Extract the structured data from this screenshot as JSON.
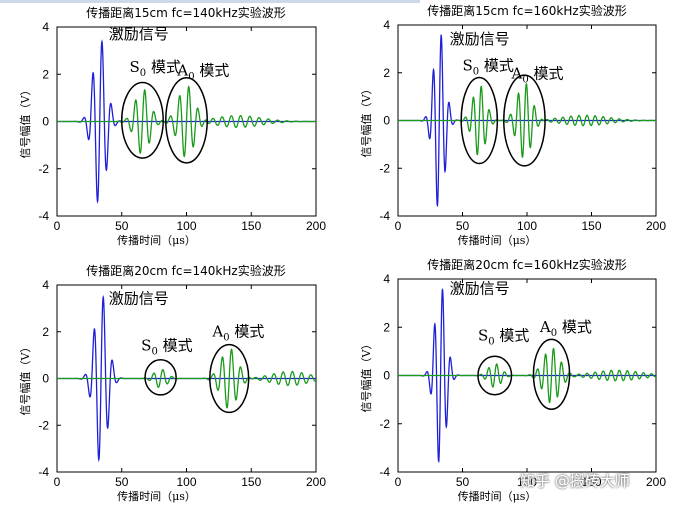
{
  "chart_data": [
    {
      "type": "line",
      "title": "传播距离15cm fc=140kHz实验波形",
      "xlabel": "传播时间（μs）",
      "ylabel": "信号幅值（V）",
      "xlim": [
        0,
        200
      ],
      "ylim": [
        -4,
        4
      ],
      "xticks": [
        "0",
        "50",
        "100",
        "150",
        "200"
      ],
      "yticks": [
        "-4",
        "-2",
        "0",
        "2",
        "4"
      ],
      "series": [
        {
          "color": "#1f1fd6",
          "packets": [
            {
              "center": 33,
              "width": 7,
              "freq": 0.14,
              "amp": 3.6
            }
          ]
        },
        {
          "color": "#1a9a1a",
          "packets": [
            {
              "center": 66,
              "width": 8,
              "freq": 0.14,
              "amp": 1.4
            },
            {
              "center": 100,
              "width": 9,
              "freq": 0.14,
              "amp": 1.55
            },
            {
              "center": 140,
              "width": 25,
              "freq": 0.14,
              "amp": 0.25
            }
          ]
        }
      ],
      "annotations": [
        {
          "text": "激励信号",
          "x": 40,
          "y": 3.5
        },
        {
          "text": "S",
          "sub": "0",
          "suffix": " 模式",
          "x": 56,
          "y": 2.1
        },
        {
          "text": "A",
          "sub": "0",
          "suffix": " 模式",
          "x": 93,
          "y": 1.95
        }
      ],
      "ellipses": [
        {
          "cx": 66,
          "cy": 0.05,
          "rx": 16,
          "ry": 1.6
        },
        {
          "cx": 100,
          "cy": 0.05,
          "rx": 16,
          "ry": 1.8
        }
      ]
    },
    {
      "type": "line",
      "title": "传播距离15cm fc=160kHz实验波形",
      "xlabel": "传播时间（μs）",
      "ylabel": "信号幅值（V）",
      "xlim": [
        0,
        200
      ],
      "ylim": [
        -4,
        4
      ],
      "xticks": [
        "0",
        "50",
        "100",
        "150",
        "200"
      ],
      "yticks": [
        "-4",
        "-2",
        "0",
        "2",
        "4"
      ],
      "series": [
        {
          "color": "#1f1fd6",
          "packets": [
            {
              "center": 32,
              "width": 6,
              "freq": 0.16,
              "amp": 3.8
            }
          ]
        },
        {
          "color": "#1a9a1a",
          "packets": [
            {
              "center": 63,
              "width": 7,
              "freq": 0.16,
              "amp": 1.5
            },
            {
              "center": 98,
              "width": 8,
              "freq": 0.16,
              "amp": 1.6
            },
            {
              "center": 145,
              "width": 25,
              "freq": 0.16,
              "amp": 0.22
            }
          ]
        }
      ],
      "annotations": [
        {
          "text": "激励信号",
          "x": 40,
          "y": 3.2
        },
        {
          "text": "S",
          "sub": "0",
          "suffix": " 模式",
          "x": 50,
          "y": 2.1
        },
        {
          "text": "A",
          "sub": "0",
          "suffix": " 模式",
          "x": 88,
          "y": 1.75
        }
      ],
      "ellipses": [
        {
          "cx": 63,
          "cy": 0.0,
          "rx": 14,
          "ry": 1.8
        },
        {
          "cx": 98,
          "cy": 0.0,
          "rx": 16,
          "ry": 1.9
        }
      ]
    },
    {
      "type": "line",
      "title": "传播距离20cm fc=140kHz实验波形",
      "xlabel": "传播时间（μs）",
      "ylabel": "信号幅值（V）",
      "xlim": [
        0,
        200
      ],
      "ylim": [
        -4,
        4
      ],
      "xticks": [
        "0",
        "50",
        "100",
        "150",
        "200"
      ],
      "yticks": [
        "-4",
        "-2",
        "0",
        "2",
        "4"
      ],
      "series": [
        {
          "color": "#1f1fd6",
          "packets": [
            {
              "center": 34,
              "width": 7,
              "freq": 0.14,
              "amp": 3.7
            }
          ]
        },
        {
          "color": "#1a9a1a",
          "packets": [
            {
              "center": 80,
              "width": 7,
              "freq": 0.14,
              "amp": 0.4
            },
            {
              "center": 133,
              "width": 9,
              "freq": 0.14,
              "amp": 1.3
            },
            {
              "center": 180,
              "width": 20,
              "freq": 0.14,
              "amp": 0.3
            }
          ]
        }
      ],
      "annotations": [
        {
          "text": "激励信号",
          "x": 40,
          "y": 3.2
        },
        {
          "text": "S",
          "sub": "0",
          "suffix": " 模式",
          "x": 65,
          "y": 1.2
        },
        {
          "text": "A",
          "sub": "0",
          "suffix": " 模式",
          "x": 120,
          "y": 1.8
        }
      ],
      "ellipses": [
        {
          "cx": 80,
          "cy": 0.05,
          "rx": 12,
          "ry": 0.75
        },
        {
          "cx": 133,
          "cy": 0.0,
          "rx": 15,
          "ry": 1.45
        }
      ]
    },
    {
      "type": "line",
      "title": "传播距离20cm fc=160kHz实验波形",
      "xlabel": "传播时间（μs）",
      "ylabel": "信号幅值（V）",
      "xlim": [
        0,
        200
      ],
      "ylim": [
        -4,
        4
      ],
      "xticks": [
        "0",
        "50",
        "100",
        "150",
        "200"
      ],
      "yticks": [
        "-4",
        "-2",
        "0",
        "2",
        "4"
      ],
      "series": [
        {
          "color": "#1f1fd6",
          "packets": [
            {
              "center": 33,
              "width": 6,
              "freq": 0.16,
              "amp": 3.8
            }
          ]
        },
        {
          "color": "#1a9a1a",
          "packets": [
            {
              "center": 75,
              "width": 7,
              "freq": 0.16,
              "amp": 0.5
            },
            {
              "center": 119,
              "width": 9,
              "freq": 0.16,
              "amp": 1.15
            },
            {
              "center": 170,
              "width": 25,
              "freq": 0.16,
              "amp": 0.22
            }
          ]
        }
      ],
      "annotations": [
        {
          "text": "激励信号",
          "x": 40,
          "y": 3.4
        },
        {
          "text": "S",
          "sub": "0",
          "suffix": " 模式",
          "x": 62,
          "y": 1.45
        },
        {
          "text": "A",
          "sub": "0",
          "suffix": " 模式",
          "x": 110,
          "y": 1.8
        }
      ],
      "ellipses": [
        {
          "cx": 75,
          "cy": 0.0,
          "rx": 13,
          "ry": 0.8
        },
        {
          "cx": 119,
          "cy": 0.05,
          "rx": 14,
          "ry": 1.45
        }
      ]
    }
  ],
  "watermark": "知乎 @搬砖大师"
}
